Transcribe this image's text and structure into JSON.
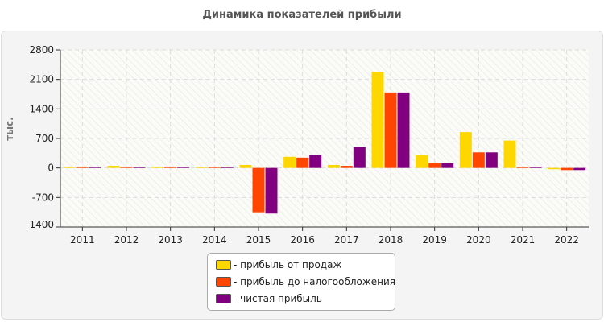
{
  "chart_data": {
    "type": "bar",
    "title": "Динамика показателей прибыли",
    "ylabel": "тыс.",
    "xlabel": "",
    "ylim": [
      -1400,
      2800
    ],
    "yticks": [
      -1400,
      -700,
      0,
      700,
      1400,
      2100,
      2800
    ],
    "grid": true,
    "legend_position": "bottom",
    "categories": [
      "2011",
      "2012",
      "2013",
      "2014",
      "2015",
      "2016",
      "2017",
      "2018",
      "2019",
      "2020",
      "2021",
      "2022"
    ],
    "series": [
      {
        "name": "- прибыль от продаж",
        "color": "#ffd700",
        "values": [
          30,
          50,
          30,
          30,
          70,
          265,
          70,
          2280,
          310,
          850,
          650,
          -30
        ]
      },
      {
        "name": "- прибыль до налогообложения",
        "color": "#ff4500",
        "values": [
          30,
          30,
          30,
          30,
          -1050,
          245,
          50,
          1790,
          110,
          370,
          30,
          -50
        ]
      },
      {
        "name": "- чистая прибыль",
        "color": "#800080",
        "values": [
          30,
          30,
          30,
          30,
          -1080,
          300,
          500,
          1790,
          110,
          370,
          30,
          -50
        ]
      }
    ]
  }
}
